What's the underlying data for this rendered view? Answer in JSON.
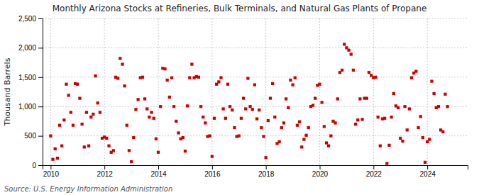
{
  "chart_data": {
    "type": "scatter",
    "title": "Monthly Arizona Stocks at Refineries, Bulk Terminals, and Natural Gas Plants of Propane",
    "ylabel": "Thousand Barrels",
    "source": "Source: U.S. Energy Information Administration",
    "color": "#cc0000",
    "marker": "square",
    "grid": true,
    "xlim": [
      2009.7,
      2025.5
    ],
    "xticks": [
      2010,
      2012,
      2014,
      2016,
      2018,
      2020,
      2022,
      2024
    ],
    "ylim": [
      0,
      2500
    ],
    "yticks": [
      0,
      500,
      {
        "value": 1000,
        "label": "1,000"
      },
      {
        "value": 1500,
        "label": "1,500"
      },
      {
        "value": 2000,
        "label": "2,000"
      },
      {
        "value": 2500,
        "label": "2,500"
      }
    ],
    "x": [
      2010.0,
      2010.083,
      2010.167,
      2010.25,
      2010.333,
      2010.417,
      2010.5,
      2010.583,
      2010.667,
      2010.75,
      2010.833,
      2010.917,
      2011.0,
      2011.083,
      2011.167,
      2011.25,
      2011.333,
      2011.417,
      2011.5,
      2011.583,
      2011.667,
      2011.75,
      2011.833,
      2011.917,
      2012.0,
      2012.083,
      2012.167,
      2012.25,
      2012.333,
      2012.417,
      2012.5,
      2012.583,
      2012.667,
      2012.75,
      2012.833,
      2012.917,
      2013.0,
      2013.083,
      2013.167,
      2013.25,
      2013.333,
      2013.417,
      2013.5,
      2013.583,
      2013.667,
      2013.75,
      2013.833,
      2013.917,
      2014.0,
      2014.083,
      2014.167,
      2014.25,
      2014.333,
      2014.417,
      2014.5,
      2014.583,
      2014.667,
      2014.75,
      2014.833,
      2014.917,
      2015.0,
      2015.083,
      2015.167,
      2015.25,
      2015.333,
      2015.417,
      2015.5,
      2015.583,
      2015.667,
      2015.75,
      2015.833,
      2015.917,
      2016.0,
      2016.083,
      2016.167,
      2016.25,
      2016.333,
      2016.417,
      2016.5,
      2016.583,
      2016.667,
      2016.75,
      2016.833,
      2016.917,
      2017.0,
      2017.083,
      2017.167,
      2017.25,
      2017.333,
      2017.417,
      2017.5,
      2017.583,
      2017.667,
      2017.75,
      2017.833,
      2017.917,
      2018.0,
      2018.083,
      2018.167,
      2018.25,
      2018.333,
      2018.417,
      2018.5,
      2018.583,
      2018.667,
      2018.75,
      2018.833,
      2018.917,
      2019.0,
      2019.083,
      2019.167,
      2019.25,
      2019.333,
      2019.417,
      2019.5,
      2019.583,
      2019.667,
      2019.75,
      2019.833,
      2019.917,
      2020.0,
      2020.083,
      2020.167,
      2020.25,
      2020.333,
      2020.417,
      2020.5,
      2020.583,
      2020.667,
      2020.75,
      2020.833,
      2020.917,
      2021.0,
      2021.083,
      2021.167,
      2021.25,
      2021.333,
      2021.417,
      2021.5,
      2021.583,
      2021.667,
      2021.75,
      2021.833,
      2021.917,
      2022.0,
      2022.083,
      2022.167,
      2022.25,
      2022.333,
      2022.417,
      2022.5,
      2022.583,
      2022.667,
      2022.75,
      2022.833,
      2022.917,
      2023.0,
      2023.083,
      2023.167,
      2023.25,
      2023.333,
      2023.417,
      2023.5,
      2023.583,
      2023.667,
      2023.75,
      2023.833,
      2023.917,
      2024.0,
      2024.083,
      2024.167,
      2024.25,
      2024.333,
      2024.417,
      2024.5,
      2024.583,
      2024.667,
      2024.75
    ],
    "values": [
      500,
      100,
      280,
      120,
      680,
      330,
      770,
      1380,
      1190,
      900,
      680,
      1390,
      1380,
      1140,
      700,
      310,
      900,
      330,
      820,
      870,
      1520,
      1060,
      900,
      460,
      480,
      460,
      330,
      220,
      250,
      1500,
      1480,
      1820,
      1720,
      1350,
      680,
      250,
      60,
      470,
      950,
      1120,
      1490,
      1500,
      1130,
      960,
      820,
      900,
      800,
      450,
      220,
      1000,
      1650,
      1640,
      1450,
      1160,
      1490,
      1000,
      750,
      550,
      450,
      470,
      240,
      1010,
      1490,
      1720,
      1490,
      1510,
      1500,
      1000,
      820,
      720,
      490,
      500,
      150,
      800,
      1380,
      1420,
      1490,
      960,
      800,
      1380,
      1000,
      940,
      640,
      490,
      500,
      800,
      1140,
      960,
      1480,
      1000,
      950,
      1370,
      790,
      940,
      640,
      490,
      130,
      760,
      1140,
      1390,
      820,
      370,
      400,
      640,
      720,
      1130,
      980,
      1450,
      1370,
      1490,
      680,
      740,
      310,
      440,
      510,
      640,
      1000,
      1020,
      1140,
      1360,
      1380,
      1070,
      660,
      380,
      330,
      500,
      750,
      720,
      1130,
      1580,
      1620,
      2060,
      2000,
      1960,
      1890,
      1620,
      700,
      770,
      1130,
      780,
      1140,
      1140,
      1580,
      1530,
      1490,
      1500,
      820,
      330,
      790,
      800,
      30,
      340,
      820,
      1220,
      1010,
      980,
      460,
      410,
      1000,
      600,
      960,
      1490,
      1570,
      1600,
      640,
      830,
      470,
      50,
      400,
      440,
      1430,
      1220,
      980,
      1000,
      600,
      570,
      1210,
      1000
    ]
  }
}
